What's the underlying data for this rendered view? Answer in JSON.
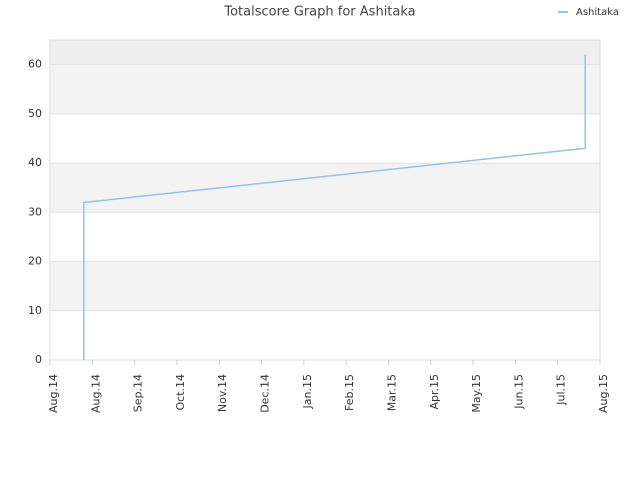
{
  "chart_data": {
    "type": "line",
    "title": "Totalscore Graph for Ashitaka",
    "x": [
      0.8,
      0.8,
      12.65,
      12.65
    ],
    "series": [
      {
        "name": "Ashitaka",
        "color": "#90c4ef",
        "values": [
          0,
          32,
          43,
          62
        ]
      }
    ],
    "xlim": [
      0,
      13
    ],
    "xticks": [
      {
        "value": 0,
        "label": "Aug.14"
      },
      {
        "value": 1,
        "label": "Aug.14"
      },
      {
        "value": 2,
        "label": "Sep.14"
      },
      {
        "value": 3,
        "label": "Oct.14"
      },
      {
        "value": 4,
        "label": "Nov.14"
      },
      {
        "value": 5,
        "label": "Dec.14"
      },
      {
        "value": 6,
        "label": "Jan.15"
      },
      {
        "value": 7,
        "label": "Feb.15"
      },
      {
        "value": 8,
        "label": "Mar.15"
      },
      {
        "value": 9,
        "label": "Apr.15"
      },
      {
        "value": 10,
        "label": "May.15"
      },
      {
        "value": 11,
        "label": "Jun.15"
      },
      {
        "value": 12,
        "label": "Jul.15"
      },
      {
        "value": 13,
        "label": "Aug.15"
      }
    ],
    "ylim": [
      0,
      65
    ],
    "yticks": [
      0,
      10,
      20,
      30,
      40,
      50,
      60
    ],
    "grid": true,
    "legend": "top-right"
  }
}
